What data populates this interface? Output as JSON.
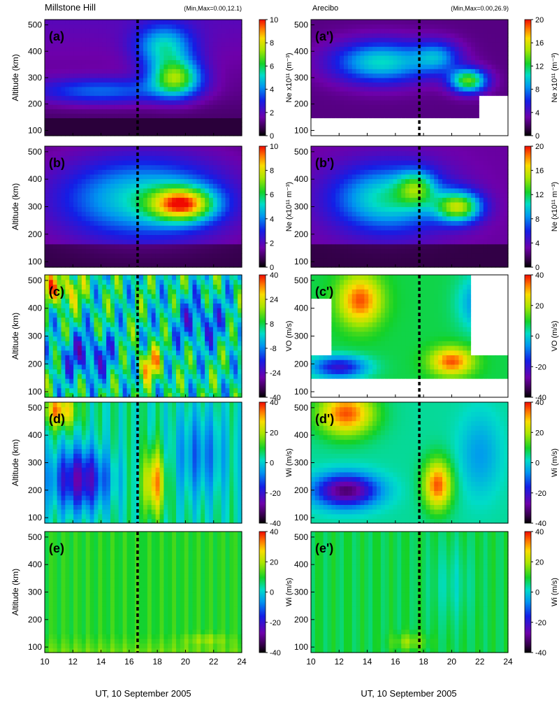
{
  "figure": {
    "left_title": "Millstone Hill",
    "left_minmax": "(Min,Max=0.00,12.1)",
    "right_title": "Arecibo",
    "right_minmax": "(Min,Max=0.00,26.9)",
    "xlabel": "UT, 10 September 2005",
    "ylabel": "Altitude (km)",
    "x_ticks": [
      "10",
      "12",
      "14",
      "16",
      "18",
      "20",
      "22",
      "24"
    ],
    "y_ticks": [
      "100",
      "200",
      "300",
      "400",
      "500"
    ],
    "dashed_line_color": "#000000"
  },
  "chart_data": [
    {
      "type": "heatmap",
      "id": "a",
      "panel_label": "(a)",
      "site": "Millstone Hill",
      "quantity": "Ne",
      "colorbar_label": "Ne x10¹¹ (m⁻³)",
      "cbar_ticks": [
        "0",
        "2",
        "4",
        "6",
        "8",
        "10"
      ],
      "clim": [
        0,
        10
      ],
      "xlim": [
        10,
        24
      ],
      "ylim": [
        80,
        520
      ],
      "dashed_ut": 16.6
    },
    {
      "type": "heatmap",
      "id": "b",
      "panel_label": "(b)",
      "site": "Millstone Hill",
      "quantity": "Ne",
      "colorbar_label": "Ne (x10¹¹ m⁻³)",
      "cbar_ticks": [
        "0",
        "2",
        "4",
        "6",
        "8",
        "10"
      ],
      "clim": [
        0,
        10
      ],
      "xlim": [
        10,
        24
      ],
      "ylim": [
        80,
        520
      ],
      "dashed_ut": 16.6
    },
    {
      "type": "heatmap",
      "id": "c",
      "panel_label": "(c)",
      "site": "Millstone Hill",
      "quantity": "VO",
      "colorbar_label": "VO (m/s)",
      "cbar_ticks": [
        "-40",
        "-24",
        "-8",
        "8",
        "24",
        "40"
      ],
      "clim": [
        -40,
        40
      ],
      "xlim": [
        10,
        24
      ],
      "ylim": [
        80,
        520
      ],
      "dashed_ut": 16.6
    },
    {
      "type": "heatmap",
      "id": "d",
      "panel_label": "(d)",
      "site": "Millstone Hill",
      "quantity": "Wi",
      "colorbar_label": "Wi (m/s)",
      "cbar_ticks": [
        "-40",
        "-20",
        "0",
        "20",
        "40"
      ],
      "clim": [
        -40,
        40
      ],
      "xlim": [
        10,
        24
      ],
      "ylim": [
        80,
        520
      ],
      "dashed_ut": 16.6
    },
    {
      "type": "heatmap",
      "id": "e",
      "panel_label": "(e)",
      "site": "Millstone Hill",
      "quantity": "Wi",
      "colorbar_label": "Wi (m/s)",
      "cbar_ticks": [
        "-40",
        "-20",
        "0",
        "20",
        "40"
      ],
      "clim": [
        -40,
        40
      ],
      "xlim": [
        10,
        24
      ],
      "ylim": [
        80,
        520
      ],
      "dashed_ut": 16.6
    },
    {
      "type": "heatmap",
      "id": "a2",
      "panel_label": "(a')",
      "site": "Arecibo",
      "quantity": "Ne",
      "colorbar_label": "Ne x10¹¹ (m⁻³)",
      "cbar_ticks": [
        "0",
        "4",
        "8",
        "12",
        "16",
        "20"
      ],
      "clim": [
        0,
        20
      ],
      "xlim": [
        10,
        24
      ],
      "ylim": [
        80,
        520
      ],
      "dashed_ut": 17.7
    },
    {
      "type": "heatmap",
      "id": "b2",
      "panel_label": "(b')",
      "site": "Arecibo",
      "quantity": "Ne",
      "colorbar_label": "Ne (x10¹¹ m⁻³)",
      "cbar_ticks": [
        "0",
        "4",
        "8",
        "12",
        "16",
        "20"
      ],
      "clim": [
        0,
        20
      ],
      "xlim": [
        10,
        24
      ],
      "ylim": [
        80,
        520
      ],
      "dashed_ut": 17.7
    },
    {
      "type": "heatmap",
      "id": "c2",
      "panel_label": "(c')",
      "site": "Arecibo",
      "quantity": "VO",
      "colorbar_label": "VO (m/s)",
      "cbar_ticks": [
        "-40",
        "-20",
        "0",
        "20",
        "40"
      ],
      "clim": [
        -40,
        40
      ],
      "xlim": [
        10,
        24
      ],
      "ylim": [
        80,
        520
      ],
      "dashed_ut": 17.7
    },
    {
      "type": "heatmap",
      "id": "d2",
      "panel_label": "(d')",
      "site": "Arecibo",
      "quantity": "Wi",
      "colorbar_label": "Wi (m/s)",
      "cbar_ticks": [
        "-40",
        "-20",
        "0",
        "20",
        "40"
      ],
      "clim": [
        -40,
        40
      ],
      "xlim": [
        10,
        24
      ],
      "ylim": [
        80,
        520
      ],
      "dashed_ut": 17.7
    },
    {
      "type": "heatmap",
      "id": "e2",
      "panel_label": "(e')",
      "site": "Arecibo",
      "quantity": "Wi",
      "colorbar_label": "Wi (m/s)",
      "cbar_ticks": [
        "-40",
        "-20",
        "0",
        "20",
        "40"
      ],
      "clim": [
        -40,
        40
      ],
      "xlim": [
        10,
        24
      ],
      "ylim": [
        80,
        520
      ],
      "dashed_ut": 17.7
    }
  ]
}
